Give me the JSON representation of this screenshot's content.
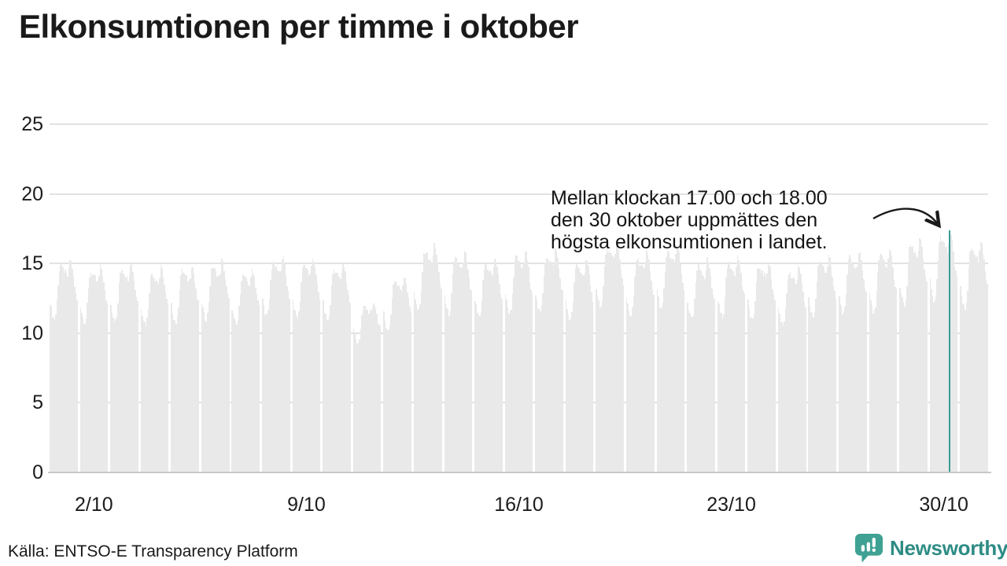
{
  "page": {
    "title": "Elkonsumtionen per timme i oktober",
    "source": "Källa: ENTSO-E Transparency Platform"
  },
  "brand": {
    "name": "Newsworthy"
  },
  "annotation": {
    "lines": [
      "Mellan klockan 17.00 och 18.00",
      "den 30 oktober uppmättes den",
      "högsta elkonsumtionen i landet."
    ]
  },
  "chart_data": {
    "type": "bar",
    "title": "Elkonsumtionen per timme i oktober",
    "xlabel": "",
    "ylabel": "",
    "grid": true,
    "ylim": [
      0,
      27.5
    ],
    "y_ticks": [
      0,
      5,
      10,
      15,
      20,
      25
    ],
    "x_ticks": [
      {
        "day": 2,
        "label": "2/10"
      },
      {
        "day": 9,
        "label": "9/10"
      },
      {
        "day": 16,
        "label": "16/10"
      },
      {
        "day": 23,
        "label": "23/10"
      },
      {
        "day": 30,
        "label": "30/10"
      }
    ],
    "hour_profile": [
      0.3,
      0.18,
      0.08,
      0.02,
      0.0,
      0.08,
      0.3,
      0.6,
      0.82,
      0.9,
      0.88,
      0.84,
      0.8,
      0.78,
      0.74,
      0.72,
      0.82,
      1.0,
      0.96,
      0.86,
      0.7,
      0.54,
      0.42,
      0.33
    ],
    "days": [
      {
        "date": "1/10",
        "min": 11.0,
        "max": 15.3
      },
      {
        "date": "2/10",
        "min": 10.8,
        "max": 14.8
      },
      {
        "date": "3/10",
        "min": 10.9,
        "max": 15.1
      },
      {
        "date": "4/10",
        "min": 10.7,
        "max": 14.7
      },
      {
        "date": "5/10",
        "min": 10.8,
        "max": 14.9
      },
      {
        "date": "6/10",
        "min": 11.0,
        "max": 15.2
      },
      {
        "date": "7/10",
        "min": 10.6,
        "max": 14.6
      },
      {
        "date": "8/10",
        "min": 11.2,
        "max": 15.5
      },
      {
        "date": "9/10",
        "min": 11.1,
        "max": 15.4
      },
      {
        "date": "10/10",
        "min": 10.9,
        "max": 15.0
      },
      {
        "date": "11/10",
        "min": 9.4,
        "max": 12.2
      },
      {
        "date": "12/10",
        "min": 10.2,
        "max": 14.2
      },
      {
        "date": "13/10",
        "min": 11.6,
        "max": 16.4
      },
      {
        "date": "14/10",
        "min": 11.4,
        "max": 15.8
      },
      {
        "date": "15/10",
        "min": 11.1,
        "max": 15.4
      },
      {
        "date": "16/10",
        "min": 11.5,
        "max": 15.9
      },
      {
        "date": "17/10",
        "min": 11.5,
        "max": 16.0
      },
      {
        "date": "18/10",
        "min": 11.0,
        "max": 15.3
      },
      {
        "date": "19/10",
        "min": 11.9,
        "max": 16.6
      },
      {
        "date": "20/10",
        "min": 11.3,
        "max": 15.8
      },
      {
        "date": "21/10",
        "min": 11.7,
        "max": 16.3
      },
      {
        "date": "22/10",
        "min": 11.0,
        "max": 15.3
      },
      {
        "date": "23/10",
        "min": 11.2,
        "max": 15.5
      },
      {
        "date": "24/10",
        "min": 11.0,
        "max": 15.2
      },
      {
        "date": "25/10",
        "min": 10.6,
        "max": 14.7
      },
      {
        "date": "26/10",
        "min": 11.2,
        "max": 15.6
      },
      {
        "date": "27/10",
        "min": 11.4,
        "max": 15.9
      },
      {
        "date": "28/10",
        "min": 11.5,
        "max": 16.1
      },
      {
        "date": "29/10",
        "min": 12.0,
        "max": 16.9
      },
      {
        "date": "30/10",
        "min": 12.2,
        "max": 17.4
      },
      {
        "date": "31/10",
        "min": 11.8,
        "max": 16.6
      }
    ],
    "highlight": {
      "date": "30/10",
      "hour": 17,
      "value": 17.4
    },
    "jitter": 0.22,
    "colors": {
      "bar": "#E9E9E9",
      "highlight": "#3A9E96",
      "grid": "#E2E2E2",
      "baseline": "#C9C9C9",
      "text": "#1A1A1A",
      "brand_icon": "#3FA193",
      "brand_text": "#2E8C85"
    }
  }
}
